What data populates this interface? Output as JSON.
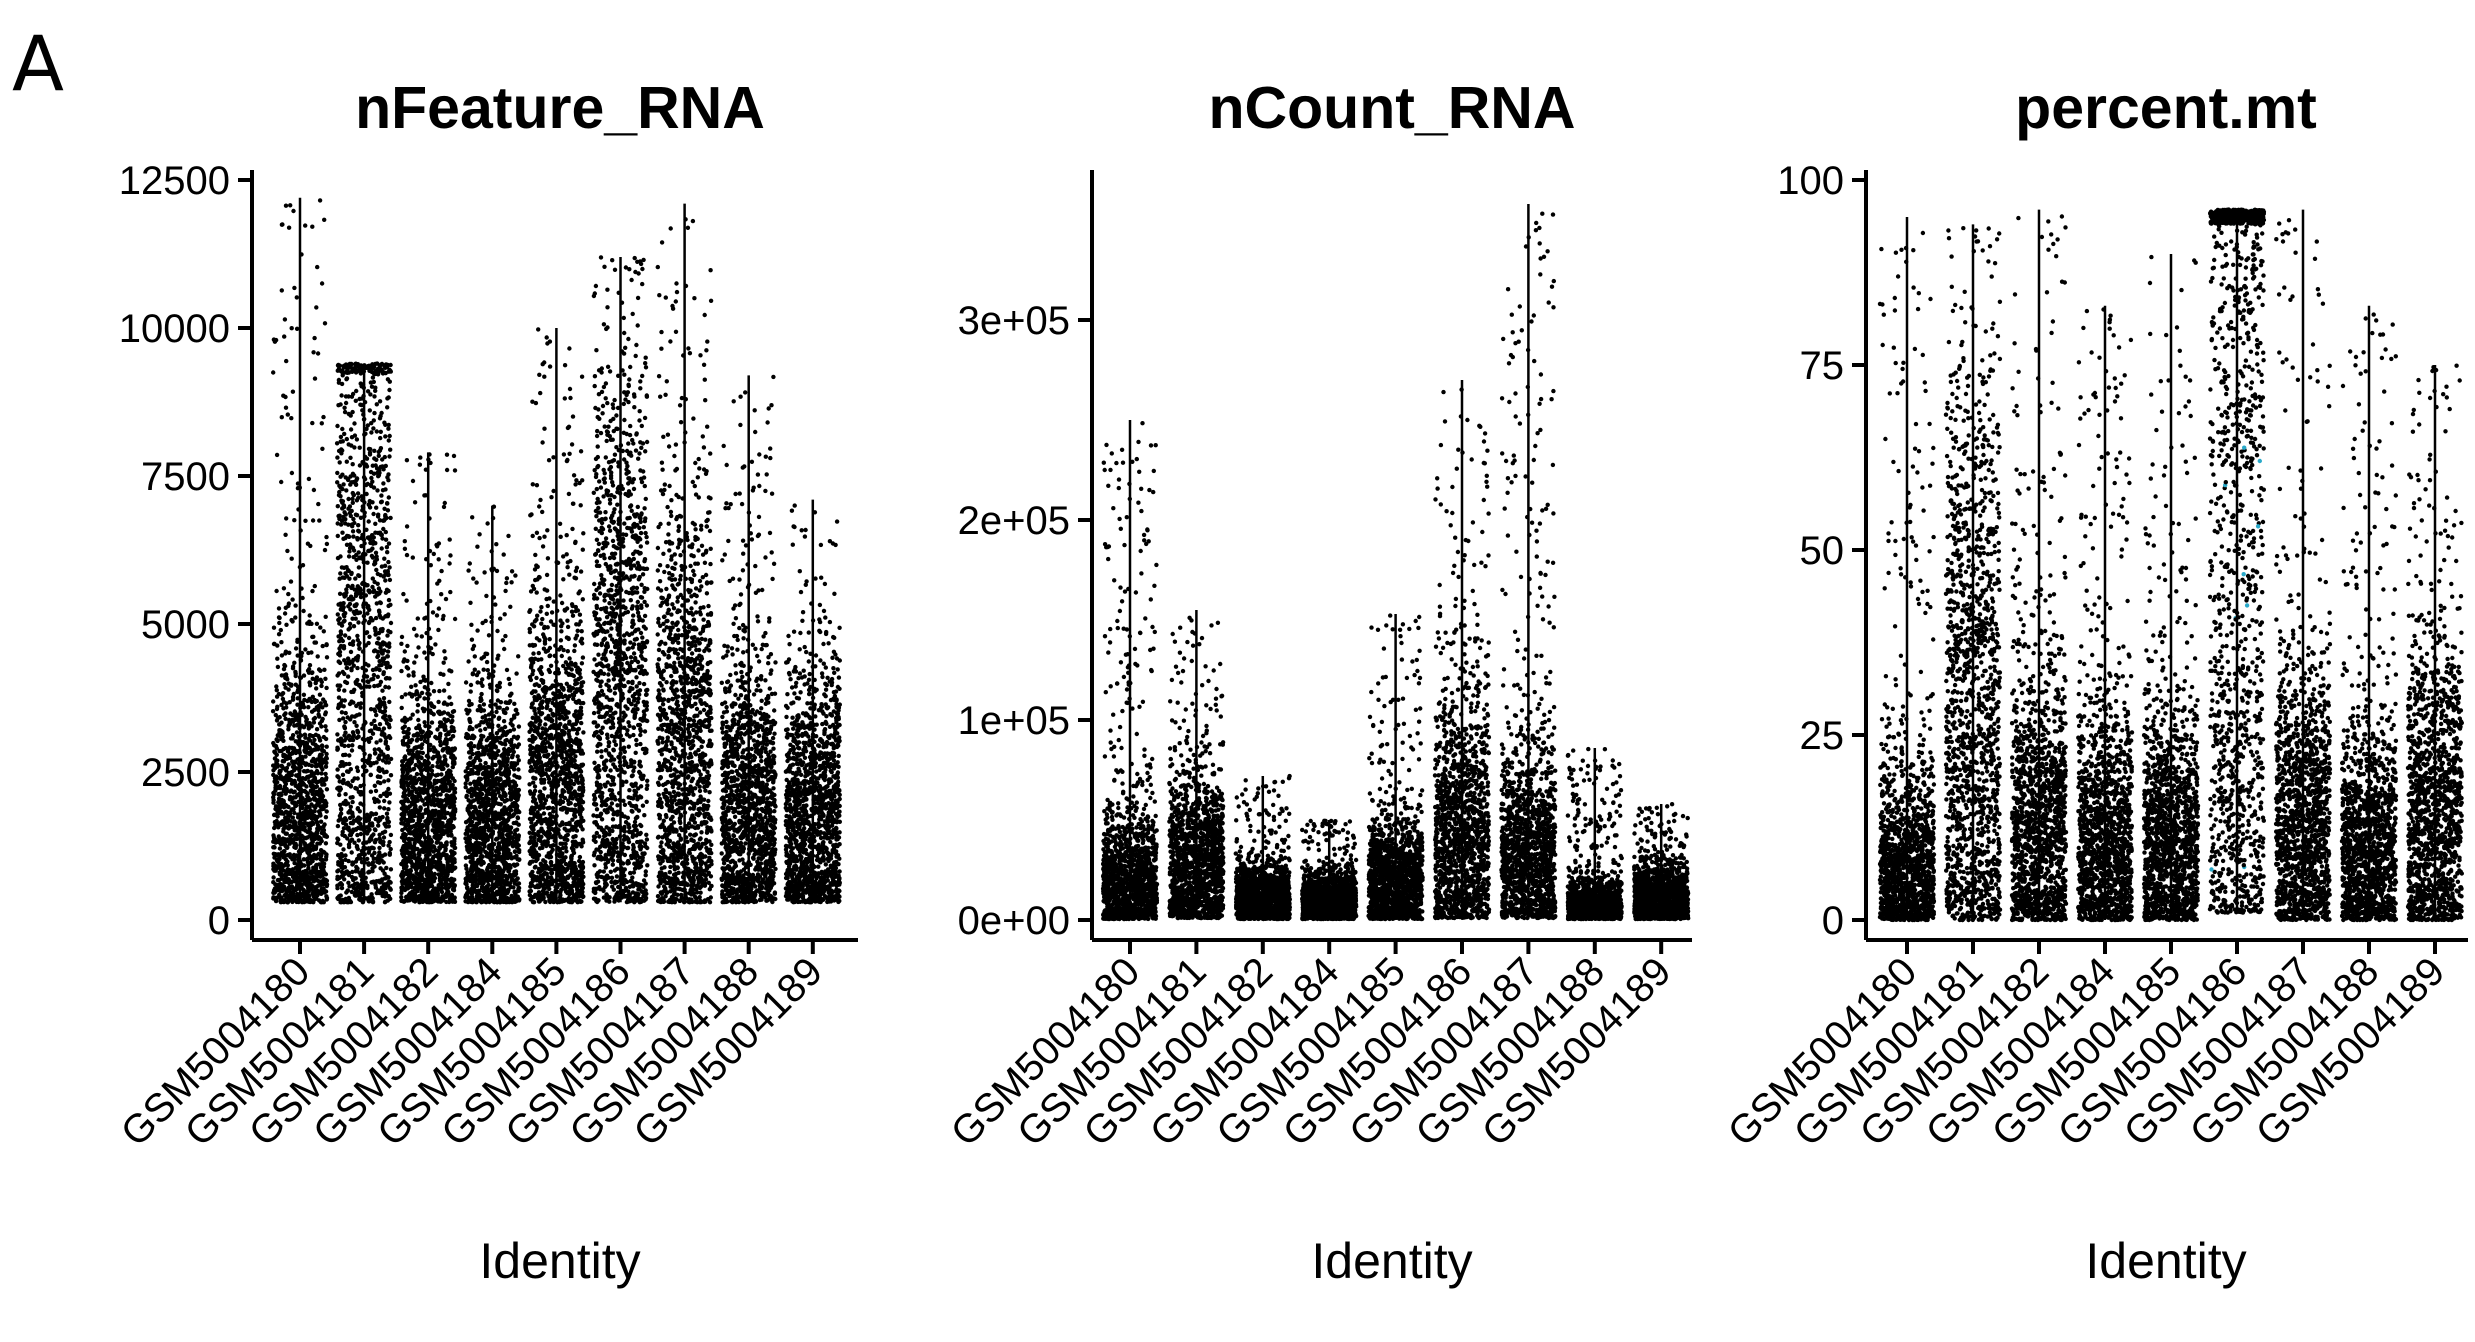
{
  "figure": {
    "panel_label": "A"
  },
  "chart_data": [
    {
      "type": "violin-scatter",
      "title": "nFeature_RNA",
      "xlabel": "Identity",
      "ylabel": "",
      "ylim": [
        0,
        12500
      ],
      "yticks": [
        0,
        2500,
        5000,
        7500,
        10000,
        12500
      ],
      "ytick_labels": [
        "0",
        "2500",
        "5000",
        "7500",
        "10000",
        "12500"
      ],
      "categories": [
        "GSM5004180",
        "GSM5004181",
        "GSM5004182",
        "GSM5004184",
        "GSM5004185",
        "GSM5004186",
        "GSM5004187",
        "GSM5004188",
        "GSM5004189"
      ],
      "series": [
        {
          "values": [
            {
              "min": 300,
              "max": 12200,
              "median": 1600
            },
            {
              "min": 300,
              "max": 9400,
              "median": 4200
            },
            {
              "min": 300,
              "max": 7900,
              "median": 1500
            },
            {
              "min": 300,
              "max": 7000,
              "median": 1500
            },
            {
              "min": 300,
              "max": 10000,
              "median": 2000
            },
            {
              "min": 300,
              "max": 11200,
              "median": 3500
            },
            {
              "min": 300,
              "max": 12100,
              "median": 2500
            },
            {
              "min": 300,
              "max": 9200,
              "median": 1600
            },
            {
              "min": 300,
              "max": 7100,
              "median": 1600
            }
          ]
        }
      ],
      "grid": false,
      "point_color": "#000000"
    },
    {
      "type": "violin-scatter",
      "title": "nCount_RNA",
      "xlabel": "Identity",
      "ylabel": "",
      "ylim": [
        0,
        370000
      ],
      "yticks": [
        0,
        100000,
        200000,
        300000
      ],
      "ytick_labels": [
        "0e+00",
        "1e+05",
        "2e+05",
        "3e+05"
      ],
      "categories": [
        "GSM5004180",
        "GSM5004181",
        "GSM5004182",
        "GSM5004184",
        "GSM5004185",
        "GSM5004186",
        "GSM5004187",
        "GSM5004188",
        "GSM5004189"
      ],
      "series": [
        {
          "values": [
            {
              "min": 500,
              "max": 250000,
              "median": 12000
            },
            {
              "min": 1000,
              "max": 155000,
              "median": 25000
            },
            {
              "min": 500,
              "max": 72000,
              "median": 9000
            },
            {
              "min": 500,
              "max": 50000,
              "median": 8000
            },
            {
              "min": 500,
              "max": 153000,
              "median": 15000
            },
            {
              "min": 1000,
              "max": 270000,
              "median": 35000
            },
            {
              "min": 1000,
              "max": 358000,
              "median": 22000
            },
            {
              "min": 500,
              "max": 86000,
              "median": 5000
            },
            {
              "min": 500,
              "max": 58000,
              "median": 10000
            }
          ]
        }
      ],
      "grid": false,
      "point_color": "#000000"
    },
    {
      "type": "violin-scatter",
      "title": "percent.mt",
      "xlabel": "Identity",
      "ylabel": "",
      "ylim": [
        0,
        100
      ],
      "yticks": [
        0,
        25,
        50,
        75,
        100
      ],
      "ytick_labels": [
        "0",
        "25",
        "50",
        "75",
        "100"
      ],
      "categories": [
        "GSM5004180",
        "GSM5004181",
        "GSM5004182",
        "GSM5004184",
        "GSM5004185",
        "GSM5004186",
        "GSM5004187",
        "GSM5004188",
        "GSM5004189"
      ],
      "series": [
        {
          "values": [
            {
              "min": 0,
              "max": 95,
              "median": 5
            },
            {
              "min": 0,
              "max": 94,
              "median": 25
            },
            {
              "min": 0,
              "max": 96,
              "median": 10
            },
            {
              "min": 0,
              "max": 83,
              "median": 8
            },
            {
              "min": 0,
              "max": 90,
              "median": 8
            },
            {
              "min": 1,
              "max": 96,
              "median": 70
            },
            {
              "min": 0,
              "max": 96,
              "median": 10
            },
            {
              "min": 0,
              "max": 83,
              "median": 7
            },
            {
              "min": 0,
              "max": 75,
              "median": 12
            }
          ]
        }
      ],
      "grid": false,
      "point_color": "#000000",
      "highlight_color": "#2aa9c9"
    }
  ]
}
